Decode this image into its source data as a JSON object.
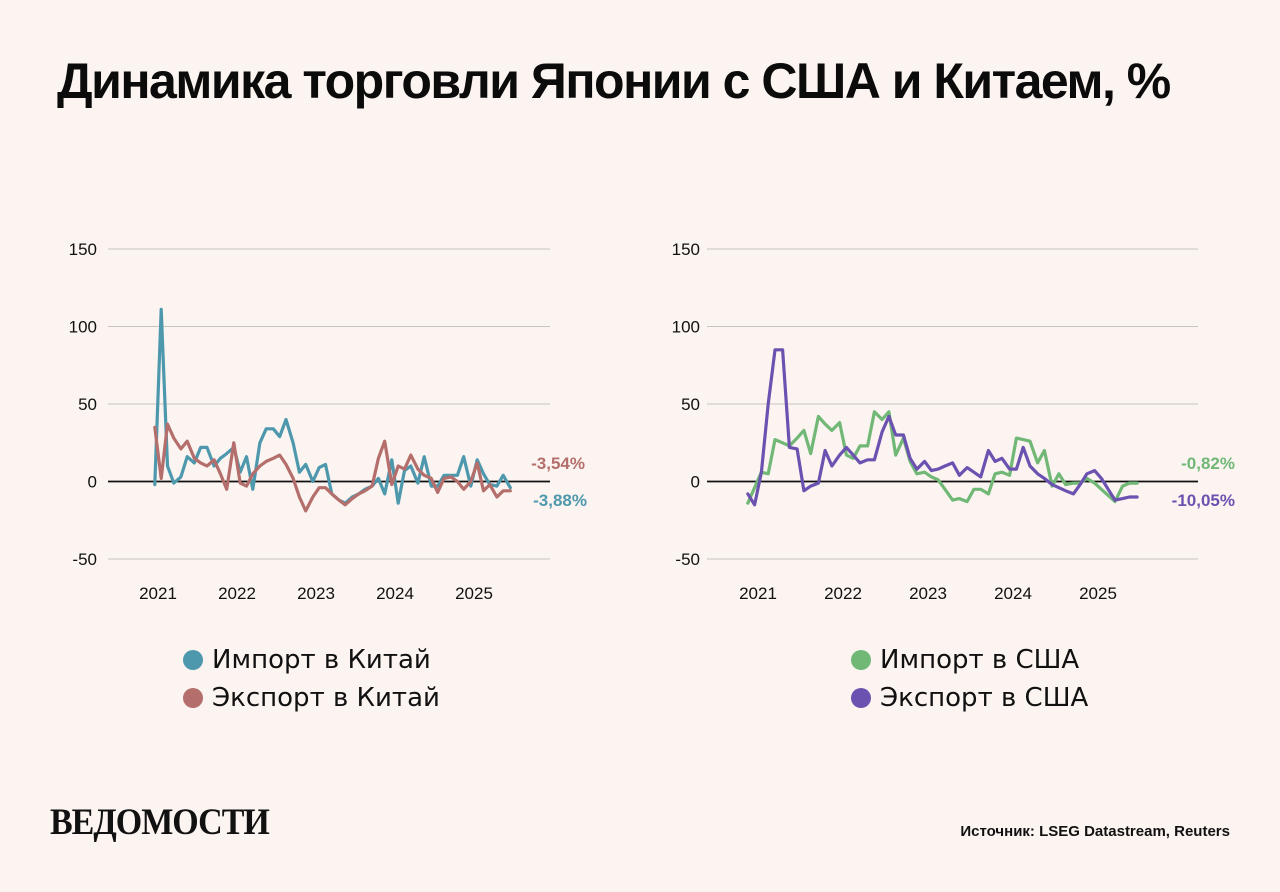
{
  "title": "Динамика торговли Японии с США и Китаем, %",
  "logo": "ВЕДОМОСТИ",
  "source": "Источник: LSEG Datastream, Reuters",
  "colors": {
    "background": "#FBF4F0",
    "import_china": "#4E98AE",
    "export_china": "#B46E6B",
    "import_usa": "#71B776",
    "export_usa": "#6B52B0",
    "grid": "#C9C4C0",
    "zero": "#111111"
  },
  "legends": {
    "china": [
      {
        "label": "Импорт в Китай",
        "color": "#4E98AE"
      },
      {
        "label": "Экспорт в Китай",
        "color": "#B46E6B"
      }
    ],
    "usa": [
      {
        "label": "Импорт в США",
        "color": "#71B776"
      },
      {
        "label": "Экспорт в США",
        "color": "#6B52B0"
      }
    ]
  },
  "chart_data": [
    {
      "type": "line",
      "id": "china",
      "ylim": [
        -50,
        150
      ],
      "yticks": [
        -50,
        0,
        50,
        100,
        150
      ],
      "xlim": [
        2020.7,
        2026.0
      ],
      "xticks": [
        2021,
        2022,
        2023,
        2024,
        2025
      ],
      "grid": true,
      "series": [
        {
          "name": "Импорт в Китай",
          "color": "#4E98AE",
          "end_label": "-3,88%",
          "x": [
            2020.96,
            2021.04,
            2021.12,
            2021.2,
            2021.29,
            2021.37,
            2021.46,
            2021.54,
            2021.62,
            2021.71,
            2021.79,
            2021.87,
            2021.96,
            2022.04,
            2022.12,
            2022.2,
            2022.29,
            2022.37,
            2022.46,
            2022.54,
            2022.62,
            2022.71,
            2022.79,
            2022.87,
            2022.96,
            2023.04,
            2023.12,
            2023.2,
            2023.29,
            2023.37,
            2023.46,
            2023.54,
            2023.62,
            2023.71,
            2023.79,
            2023.87,
            2023.96,
            2024.04,
            2024.12,
            2024.2,
            2024.29,
            2024.37,
            2024.46,
            2024.54,
            2024.62,
            2024.71,
            2024.79,
            2024.87,
            2024.96,
            2025.04,
            2025.12,
            2025.2,
            2025.29,
            2025.37,
            2025.46
          ],
          "values": [
            -2,
            111,
            10,
            -1,
            3,
            16,
            12,
            22,
            22,
            10,
            15,
            18,
            22,
            6,
            16,
            -5,
            25,
            34,
            34,
            29,
            40,
            25,
            6,
            11,
            0,
            9,
            11,
            -8,
            -12,
            -14,
            -10,
            -8,
            -5,
            -3,
            2,
            -8,
            14,
            -14,
            7,
            10,
            -1,
            16,
            -3,
            -3,
            4,
            4,
            4,
            16,
            -3,
            14,
            5,
            -2,
            -3,
            4,
            -4
          ]
        },
        {
          "name": "Экспорт в Китай",
          "color": "#B46E6B",
          "end_label": "-3,54%",
          "x": [
            2020.96,
            2021.04,
            2021.12,
            2021.2,
            2021.29,
            2021.37,
            2021.46,
            2021.54,
            2021.62,
            2021.71,
            2021.79,
            2021.87,
            2021.96,
            2022.04,
            2022.12,
            2022.2,
            2022.29,
            2022.37,
            2022.46,
            2022.54,
            2022.62,
            2022.71,
            2022.79,
            2022.87,
            2022.96,
            2023.04,
            2023.12,
            2023.2,
            2023.29,
            2023.37,
            2023.46,
            2023.54,
            2023.62,
            2023.71,
            2023.79,
            2023.87,
            2023.96,
            2024.04,
            2024.12,
            2024.2,
            2024.29,
            2024.37,
            2024.46,
            2024.54,
            2024.62,
            2024.71,
            2024.79,
            2024.87,
            2024.96,
            2025.04,
            2025.12,
            2025.2,
            2025.29,
            2025.37,
            2025.46
          ],
          "values": [
            35,
            2,
            37,
            28,
            21,
            26,
            15,
            12,
            10,
            14,
            5,
            -5,
            25,
            -1,
            -3,
            5,
            10,
            13,
            15,
            17,
            11,
            2,
            -10,
            -19,
            -10,
            -4,
            -4,
            -8,
            -12,
            -15,
            -11,
            -8,
            -6,
            -3,
            15,
            26,
            -2,
            10,
            8,
            17,
            8,
            4,
            2,
            -7,
            2,
            3,
            0,
            -5,
            0,
            12,
            -6,
            -2,
            -10,
            -6,
            -6
          ]
        }
      ]
    },
    {
      "type": "line",
      "id": "usa",
      "ylim": [
        -50,
        150
      ],
      "yticks": [
        -50,
        0,
        50,
        100,
        150
      ],
      "xlim": [
        2020.6,
        2026.1
      ],
      "xticks": [
        2021,
        2022,
        2023,
        2024,
        2025
      ],
      "grid": true,
      "series": [
        {
          "name": "Импорт в США",
          "color": "#71B776",
          "end_label": "-0,82%",
          "x": [
            2020.88,
            2020.96,
            2021.04,
            2021.12,
            2021.2,
            2021.29,
            2021.37,
            2021.46,
            2021.54,
            2021.62,
            2021.71,
            2021.79,
            2021.87,
            2021.96,
            2022.04,
            2022.12,
            2022.2,
            2022.29,
            2022.37,
            2022.46,
            2022.54,
            2022.62,
            2022.71,
            2022.79,
            2022.87,
            2022.96,
            2023.04,
            2023.12,
            2023.2,
            2023.29,
            2023.37,
            2023.46,
            2023.54,
            2023.62,
            2023.71,
            2023.79,
            2023.87,
            2023.96,
            2024.04,
            2024.12,
            2024.2,
            2024.29,
            2024.37,
            2024.46,
            2024.54,
            2024.62,
            2024.71,
            2024.79,
            2024.87,
            2024.96,
            2025.04,
            2025.12,
            2025.2,
            2025.29,
            2025.37,
            2025.46
          ],
          "values": [
            -14,
            -4,
            6,
            5,
            27,
            25,
            23,
            28,
            33,
            18,
            42,
            37,
            33,
            38,
            17,
            15,
            23,
            23,
            45,
            40,
            45,
            17,
            28,
            13,
            5,
            6,
            3,
            1,
            -5,
            -12,
            -11,
            -13,
            -5,
            -5,
            -8,
            5,
            6,
            4,
            28,
            27,
            26,
            12,
            20,
            -3,
            5,
            -2,
            -1,
            -1,
            2,
            -1,
            -5,
            -9,
            -13,
            -3,
            -1,
            -1
          ]
        },
        {
          "name": "Экспорт в США",
          "color": "#6B52B0",
          "end_label": "-10,05%",
          "x": [
            2020.88,
            2020.96,
            2021.04,
            2021.12,
            2021.2,
            2021.29,
            2021.37,
            2021.46,
            2021.54,
            2021.62,
            2021.71,
            2021.79,
            2021.87,
            2021.96,
            2022.04,
            2022.12,
            2022.2,
            2022.29,
            2022.37,
            2022.46,
            2022.54,
            2022.62,
            2022.71,
            2022.79,
            2022.87,
            2022.96,
            2023.04,
            2023.12,
            2023.2,
            2023.29,
            2023.37,
            2023.46,
            2023.54,
            2023.62,
            2023.71,
            2023.79,
            2023.87,
            2023.96,
            2024.04,
            2024.12,
            2024.2,
            2024.29,
            2024.37,
            2024.46,
            2024.54,
            2024.62,
            2024.71,
            2024.79,
            2024.87,
            2024.96,
            2025.04,
            2025.12,
            2025.2,
            2025.29,
            2025.37,
            2025.46
          ],
          "values": [
            -8,
            -15,
            6,
            50,
            85,
            85,
            22,
            21,
            -6,
            -3,
            -1,
            20,
            10,
            17,
            22,
            17,
            12,
            14,
            14,
            32,
            42,
            30,
            30,
            15,
            8,
            13,
            7,
            8,
            10,
            12,
            4,
            9,
            6,
            3,
            20,
            13,
            15,
            8,
            8,
            22,
            10,
            5,
            2,
            -2,
            -4,
            -6,
            -8,
            -2,
            5,
            7,
            2,
            -5,
            -12,
            -11,
            -10,
            -10
          ]
        }
      ]
    }
  ]
}
